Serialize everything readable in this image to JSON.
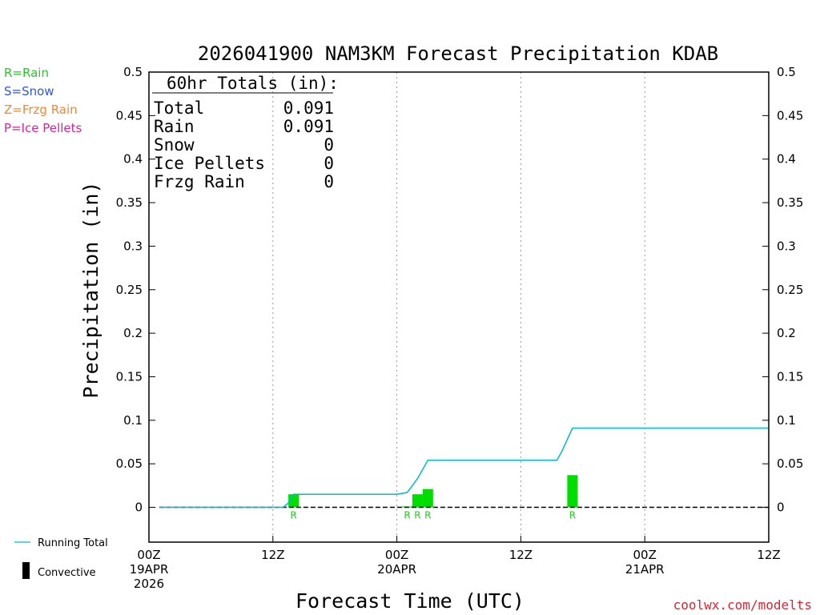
{
  "chart_data": {
    "type": "bar",
    "title": "2026041900 NAM3KM Forecast Precipitation KDAB",
    "xlabel": "Forecast Time (UTC)",
    "ylabel": "Precipitation (in)",
    "ylim": [
      -0.04,
      0.5
    ],
    "yticks": [
      0,
      0.05,
      0.1,
      0.15,
      0.2,
      0.25,
      0.3,
      0.35,
      0.4,
      0.45,
      0.5
    ],
    "ytick_labels": [
      "0",
      "0.05",
      "0.1",
      "0.15",
      "0.2",
      "0.25",
      "0.3",
      "0.35",
      "0.4",
      "0.45",
      "0.5"
    ],
    "xlim_hours": [
      0,
      60
    ],
    "xticks": [
      {
        "hour": 0,
        "lines": [
          "00Z",
          "19APR",
          "2026"
        ]
      },
      {
        "hour": 12,
        "lines": [
          "12Z"
        ]
      },
      {
        "hour": 24,
        "lines": [
          "00Z",
          "20APR"
        ]
      },
      {
        "hour": 36,
        "lines": [
          "12Z"
        ]
      },
      {
        "hour": 48,
        "lines": [
          "00Z",
          "21APR"
        ]
      },
      {
        "hour": 60,
        "lines": [
          "12Z"
        ]
      }
    ],
    "grid_hours": [
      12,
      24,
      36,
      48
    ],
    "bars": [
      {
        "hour": 14,
        "value": 0.015,
        "type": "R"
      },
      {
        "hour": 25,
        "value": 0.001,
        "type": "R"
      },
      {
        "hour": 26,
        "value": 0.015,
        "type": "R"
      },
      {
        "hour": 27,
        "value": 0.021,
        "type": "R"
      },
      {
        "hour": 41,
        "value": 0.037,
        "type": "R"
      }
    ],
    "running_total": {
      "name": "Running Total",
      "hours": [
        1,
        13,
        13.5,
        14,
        24,
        25,
        26,
        27,
        39.5,
        40,
        41,
        41.5,
        60
      ],
      "values": [
        0,
        0,
        0.005,
        0.015,
        0.015,
        0.017,
        0.033,
        0.054,
        0.054,
        0.065,
        0.091,
        0.091,
        0.091
      ]
    },
    "type_legend": [
      {
        "label": "R=Rain",
        "color": "#22cc22"
      },
      {
        "label": "S=Snow",
        "color": "#3355dd"
      },
      {
        "label": "Z=Frzg Rain",
        "color": "#ee8833"
      },
      {
        "label": "P=Ice Pellets",
        "color": "#dd2299"
      }
    ],
    "series_legend": [
      {
        "label": "Running Total",
        "color": "#00bbcc"
      },
      {
        "label": "Convective",
        "color": "#000000"
      }
    ],
    "totals": {
      "heading": "60hr Totals (in):",
      "rows": [
        {
          "label": "Total",
          "value": "0.091"
        },
        {
          "label": "Rain",
          "value": "0.091"
        },
        {
          "label": "Snow",
          "value": "0"
        },
        {
          "label": "Ice Pellets",
          "value": "0"
        },
        {
          "label": "Frzg Rain",
          "value": "0"
        }
      ]
    },
    "credit": "coolwx.com/modelts",
    "colors": {
      "bar": "#00dd00",
      "bar_label": "#22cc22",
      "running_total": "#00bbcc",
      "credit": "#dd2233"
    }
  }
}
